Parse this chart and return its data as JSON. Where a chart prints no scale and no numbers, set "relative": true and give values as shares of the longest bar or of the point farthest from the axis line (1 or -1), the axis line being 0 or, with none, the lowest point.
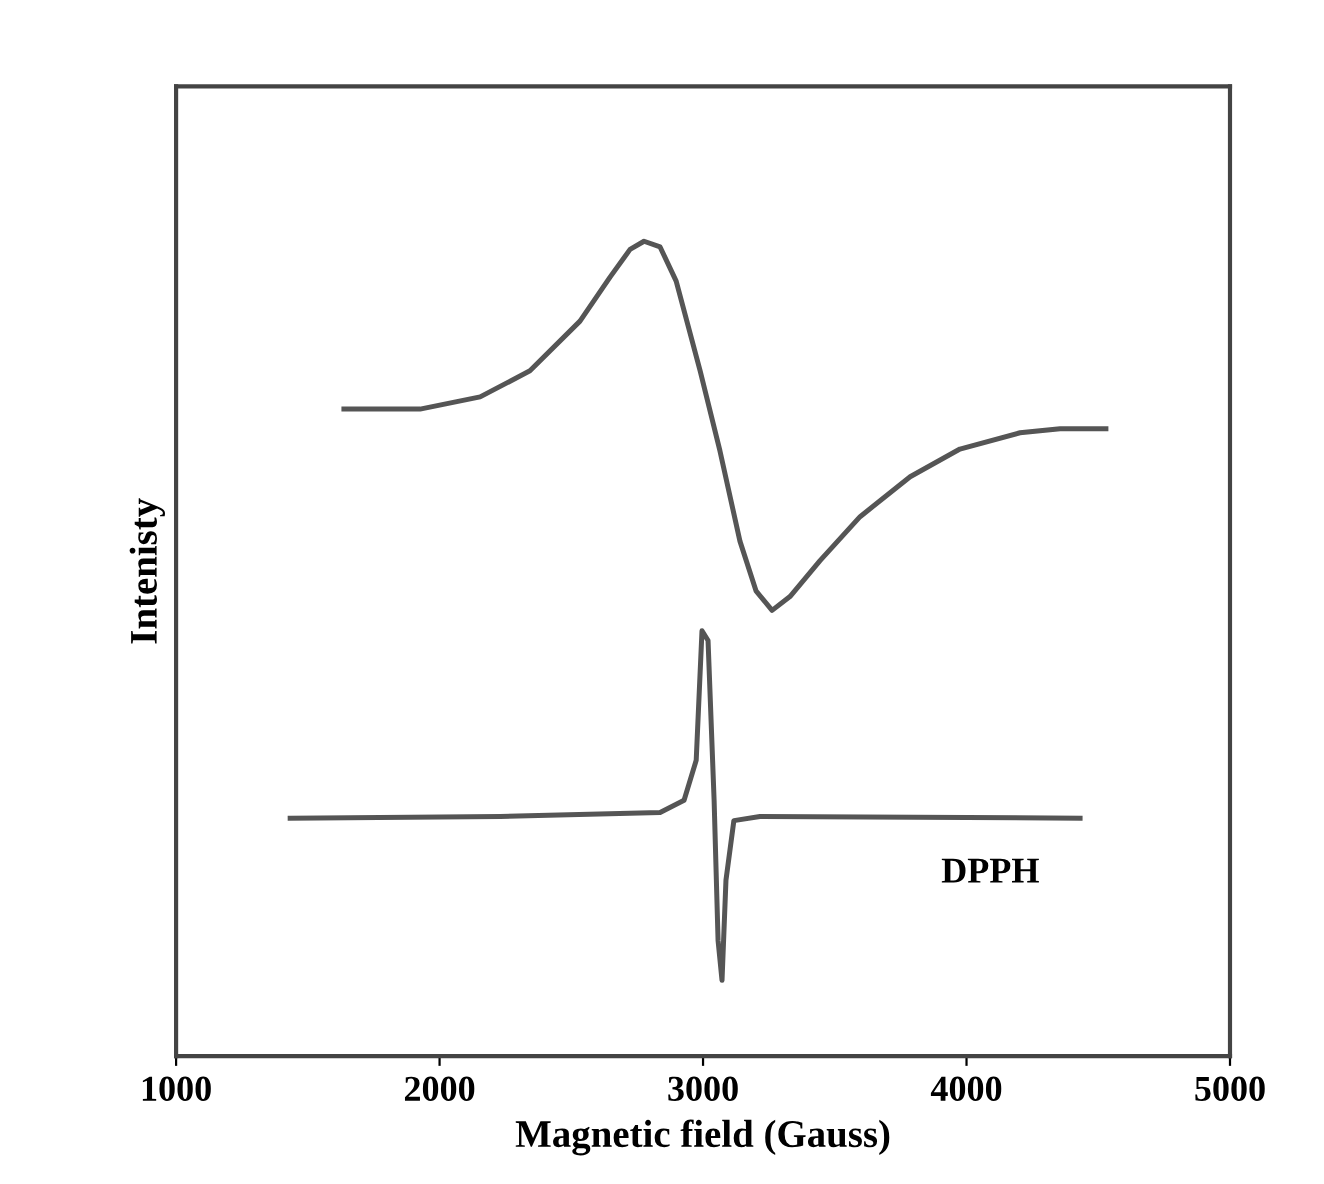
{
  "chart_data": {
    "type": "line",
    "relative": true,
    "xlabel": "Magnetic field (Gauss)",
    "ylabel": "Intenisty",
    "xlim": [
      1000,
      5000
    ],
    "xticks": [
      1000,
      2000,
      3000,
      4000,
      5000
    ],
    "series": [
      {
        "color": "#555555",
        "x": [
          1637,
          1926,
          2154,
          2343,
          2533,
          2647,
          2723,
          2776,
          2837,
          2898,
          2989,
          3064,
          3140,
          3201,
          3262,
          3330,
          3444,
          3596,
          3786,
          3975,
          4203,
          4355,
          4529
        ],
        "values": [
          0.794,
          0.794,
          0.809,
          0.841,
          0.902,
          0.956,
          0.99,
          1.0,
          0.993,
          0.951,
          0.841,
          0.743,
          0.632,
          0.571,
          0.547,
          0.564,
          0.608,
          0.662,
          0.711,
          0.745,
          0.765,
          0.77,
          0.77
        ]
      },
      {
        "name": "DPPH",
        "color": "#555555",
        "x": [
          1433,
          2230,
          2837,
          2928,
          2974,
          2996,
          3019,
          3042,
          3057,
          3072,
          3087,
          3117,
          3216,
          4431
        ],
        "values": [
          0.292,
          0.294,
          0.299,
          0.314,
          0.363,
          0.522,
          0.51,
          0.314,
          0.142,
          0.093,
          0.216,
          0.289,
          0.294,
          0.292
        ]
      }
    ]
  }
}
